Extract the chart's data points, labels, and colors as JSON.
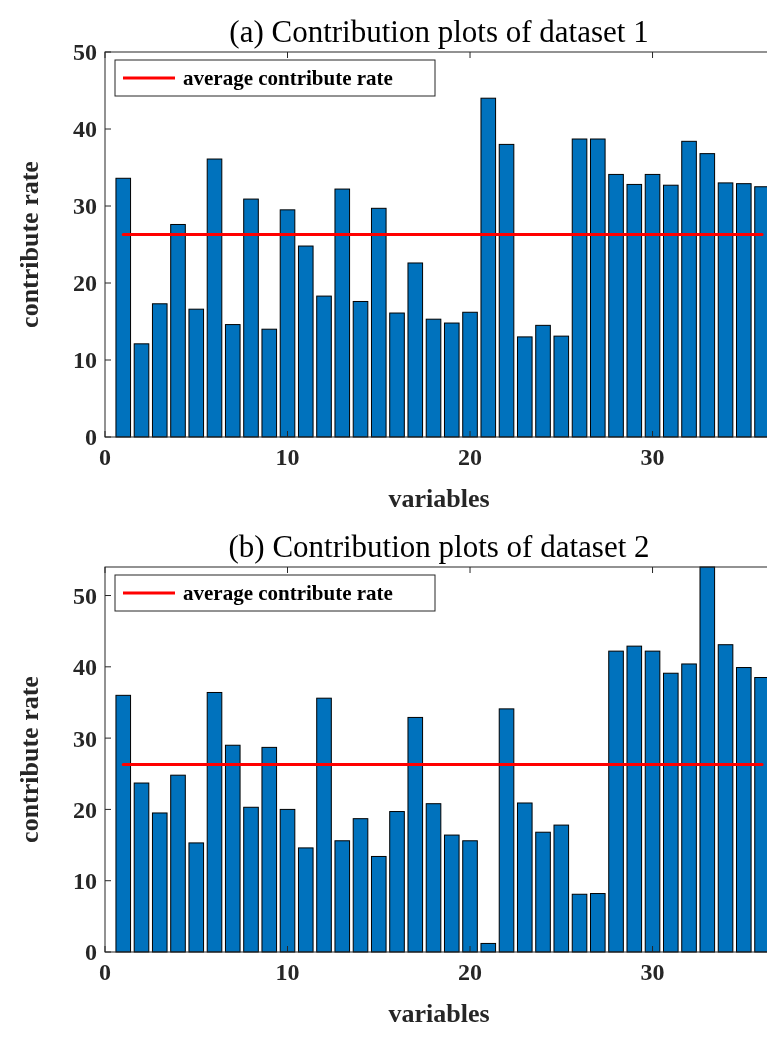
{
  "chart_data": [
    {
      "type": "bar",
      "title": "(a) Contribution plots of dataset 1",
      "xlabel": "variables",
      "ylabel": "contribute rate",
      "x": [
        1,
        2,
        3,
        4,
        5,
        6,
        7,
        8,
        9,
        10,
        11,
        12,
        13,
        14,
        15,
        16,
        17,
        18,
        19,
        20,
        21,
        22,
        23,
        24,
        25,
        26,
        27,
        28,
        29,
        30,
        31,
        32,
        33,
        34,
        35,
        36
      ],
      "xlim": [
        0,
        36.6
      ],
      "xticks": [
        0,
        10,
        20,
        30
      ],
      "ylim": [
        0,
        50
      ],
      "yticks": [
        0,
        10,
        20,
        30,
        40,
        50
      ],
      "legend": "top left",
      "series": [
        {
          "color": "#0072bd",
          "values": [
            33.6,
            12.1,
            17.3,
            27.6,
            16.6,
            36.1,
            14.6,
            30.9,
            14.0,
            29.5,
            24.8,
            18.3,
            32.2,
            17.6,
            29.7,
            16.1,
            22.6,
            15.3,
            14.8,
            16.2,
            44,
            38.0,
            13.0,
            14.5,
            13.1,
            38.7,
            38.7,
            34.1,
            32.8,
            34.1,
            32.7,
            38.4,
            36.8,
            33.0,
            32.9,
            32.5
          ]
        },
        {
          "type": "line",
          "name": "average contribute rate",
          "color": "#ff0000",
          "values": [
            26.3,
            26.3,
            26.3,
            26.3,
            26.3,
            26.3,
            26.3,
            26.3,
            26.3,
            26.3,
            26.3,
            26.3,
            26.3,
            26.3,
            26.3,
            26.3,
            26.3,
            26.3,
            26.3,
            26.3,
            26.3,
            26.3,
            26.3,
            26.3,
            26.3,
            26.3,
            26.3,
            26.3,
            26.3,
            26.3,
            26.3,
            26.3,
            26.3,
            26.3,
            26.3,
            26.3
          ]
        }
      ]
    },
    {
      "type": "bar",
      "title": "(b) Contribution plots of dataset 2",
      "xlabel": "variables",
      "ylabel": "contribute rate",
      "x": [
        1,
        2,
        3,
        4,
        5,
        6,
        7,
        8,
        9,
        10,
        11,
        12,
        13,
        14,
        15,
        16,
        17,
        18,
        19,
        20,
        21,
        22,
        23,
        24,
        25,
        26,
        27,
        28,
        29,
        30,
        31,
        32,
        33,
        34,
        35,
        36
      ],
      "xlim": [
        0,
        36.6
      ],
      "xticks": [
        0,
        10,
        20,
        30
      ],
      "ylim": [
        0,
        54
      ],
      "yticks": [
        0,
        10,
        20,
        30,
        40,
        50
      ],
      "legend": "top left",
      "series": [
        {
          "color": "#0072bd",
          "values": [
            36.0,
            23.7,
            19.5,
            24.8,
            15.3,
            36.4,
            29.0,
            20.3,
            28.7,
            20.0,
            14.6,
            35.6,
            15.6,
            18.7,
            13.4,
            19.7,
            32.9,
            20.8,
            16.4,
            15.6,
            1.2,
            34.1,
            20.9,
            16.8,
            17.8,
            8.1,
            8.2,
            42.2,
            42.9,
            42.2,
            39.1,
            40.4,
            54,
            43.1,
            39.9,
            38.5
          ]
        },
        {
          "type": "line",
          "name": "average contribute rate",
          "color": "#ff0000",
          "values": [
            26.3,
            26.3,
            26.3,
            26.3,
            26.3,
            26.3,
            26.3,
            26.3,
            26.3,
            26.3,
            26.3,
            26.3,
            26.3,
            26.3,
            26.3,
            26.3,
            26.3,
            26.3,
            26.3,
            26.3,
            26.3,
            26.3,
            26.3,
            26.3,
            26.3,
            26.3,
            26.3,
            26.3,
            26.3,
            26.3,
            26.3,
            26.3,
            26.3,
            26.3,
            26.3,
            26.3
          ]
        }
      ]
    }
  ]
}
